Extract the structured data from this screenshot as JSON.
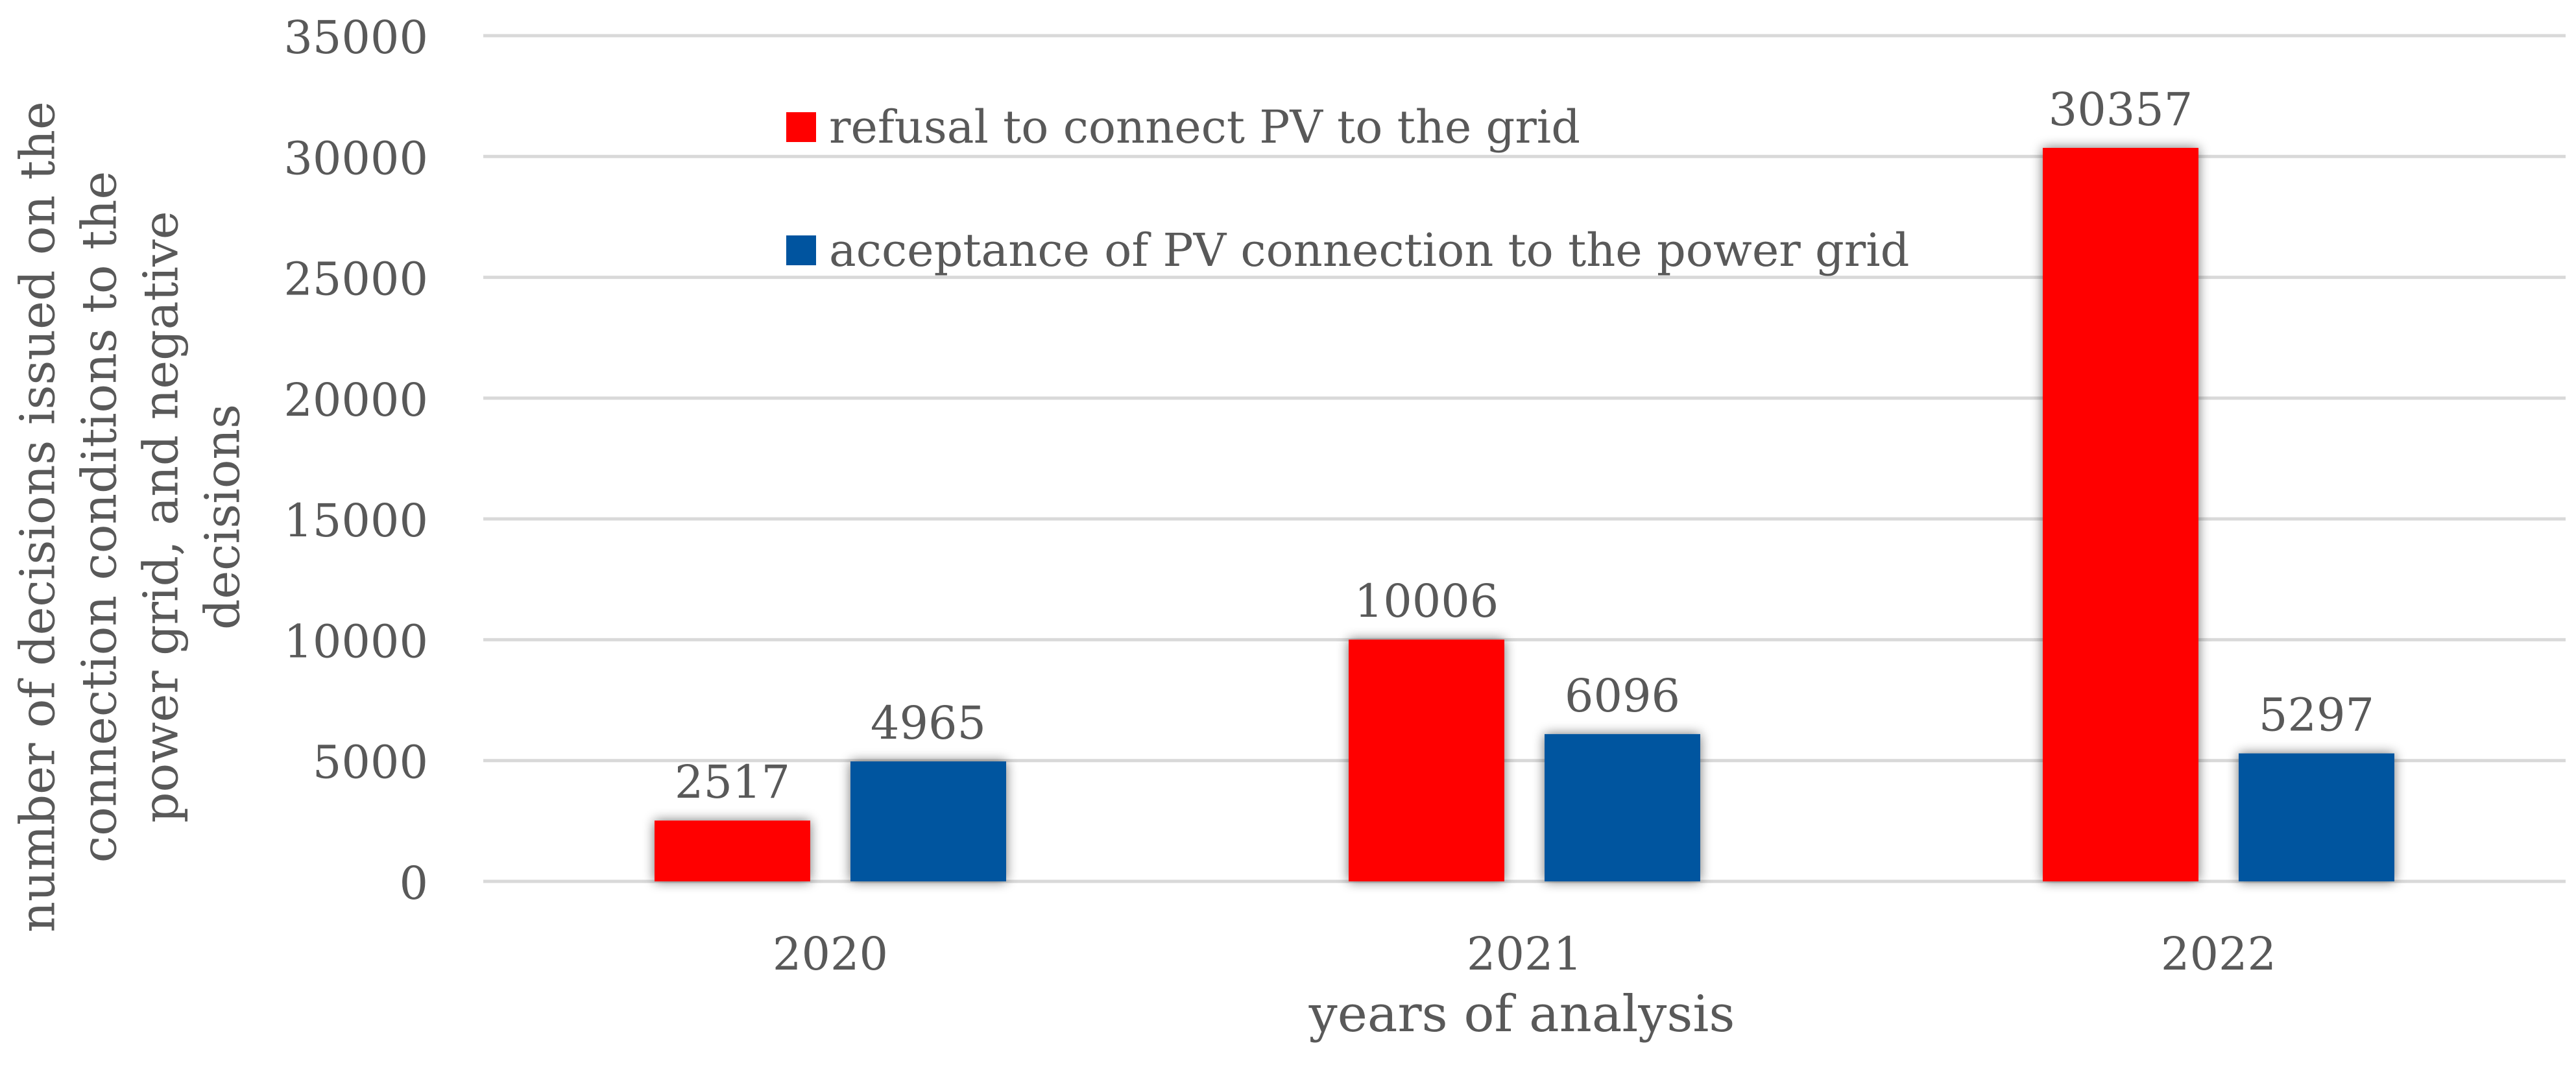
{
  "chart_data": {
    "type": "bar",
    "title": "",
    "categories": [
      "2020",
      "2021",
      "2022"
    ],
    "series": [
      {
        "name": "refusal to connect PV to the grid",
        "color": "#FF0000",
        "values": [
          2517,
          10006,
          30357
        ]
      },
      {
        "name": "acceptance of PV connection to the power grid",
        "color": "#00549F",
        "values": [
          4965,
          6096,
          5297
        ]
      }
    ],
    "xlabel": "years of analysis",
    "ylabel_lines": [
      "number of decisions issued on the",
      "connection conditions to the",
      "power grid, and negative",
      "decisions"
    ],
    "ylim": [
      0,
      35000
    ],
    "yticks": [
      0,
      5000,
      10000,
      15000,
      20000,
      25000,
      30000,
      35000
    ],
    "grid": true,
    "legend_position": "top-left-inside",
    "data_labels": true
  }
}
